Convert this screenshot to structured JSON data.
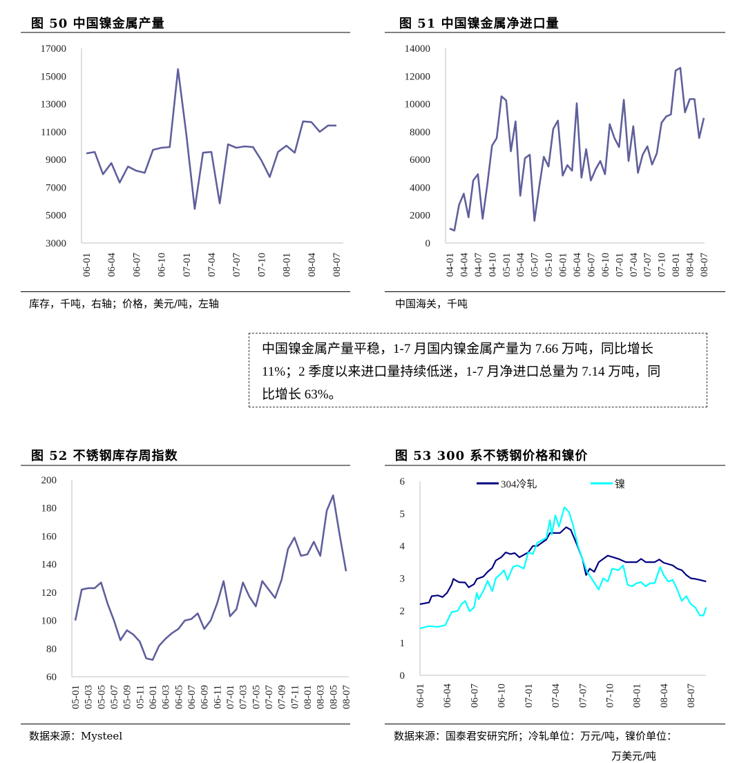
{
  "fig50": {
    "title": "图  50 中国镍金属产量",
    "caption": "库存，千吨，右轴；价格，美元/吨，左轴"
  },
  "fig51": {
    "title": "图  51 中国镍金属净进口量",
    "caption": "中国海关，千吨"
  },
  "fig52": {
    "title": "图  52  不锈钢库存周指数",
    "caption": "数据来源：Mysteel"
  },
  "fig53": {
    "title": "图  53  300 系不锈钢价格和镍价",
    "caption": "数据来源：国泰君安研究所；冷轧单位：万元/吨，镍价单位：",
    "caption_line2": "万美元/吨"
  },
  "note": {
    "lines": [
      "中国镍金属产量平稳，1-7 月国内镍金属产量为 7.66 万吨，同比增长",
      "11%；2 季度以来进口量持续低迷，1-7 月净进口总量为 7.14 万吨，同",
      "比增长 63%。"
    ]
  },
  "chart_data": [
    {
      "type": "line",
      "title": "中国镍金属产量",
      "x_start": "06-01",
      "x_step": "month",
      "tick_every": 3,
      "x_tick_labels": [
        "06-01",
        "06-04",
        "06-07",
        "06-10",
        "07-01",
        "07-04",
        "07-07",
        "07-10",
        "08-01",
        "08-04",
        "08-07"
      ],
      "y_ticks": [
        "3000",
        "5000",
        "7000",
        "9000",
        "11000",
        "13000",
        "15000",
        "17000"
      ],
      "ylim": [
        3000,
        17000
      ],
      "color": "#5f5f9c",
      "values": [
        9450,
        9550,
        7950,
        8750,
        7350,
        8500,
        8200,
        8050,
        9700,
        9850,
        9900,
        15500,
        10800,
        5450,
        9500,
        9550,
        5850,
        10100,
        9850,
        9950,
        9900,
        8950,
        7750,
        9550,
        10000,
        9500,
        11750,
        11700,
        11000,
        11450,
        11450
      ]
    },
    {
      "type": "line",
      "title": "中国镍金属净进口量",
      "x_start": "04-01",
      "x_step": "month",
      "tick_every": 3,
      "x_tick_labels": [
        "04-01",
        "04-04",
        "04-07",
        "04-10",
        "05-01",
        "05-04",
        "05-07",
        "05-10",
        "06-01",
        "06-04",
        "06-07",
        "06-10",
        "07-01",
        "07-04",
        "07-07",
        "07-10",
        "08-01",
        "08-04",
        "08-07"
      ],
      "y_ticks": [
        "0",
        "2000",
        "4000",
        "6000",
        "8000",
        "10000",
        "12000",
        "14000"
      ],
      "ylim": [
        0,
        14000
      ],
      "color": "#5f5f9c",
      "values": [
        1050,
        900,
        2750,
        3550,
        1850,
        4500,
        4950,
        1750,
        4200,
        7000,
        7550,
        10550,
        10250,
        6600,
        8750,
        3400,
        6100,
        6350,
        1600,
        4000,
        6200,
        5500,
        8200,
        8800,
        4850,
        5600,
        5200,
        10050,
        4700,
        6750,
        4500,
        5300,
        5900,
        4950,
        8550,
        7550,
        6900,
        10300,
        5900,
        8400,
        5050,
        6350,
        6950,
        5650,
        6450,
        8650,
        9100,
        9250,
        12400,
        12600,
        9400,
        10350,
        10350,
        7550,
        9000
      ]
    },
    {
      "type": "line",
      "title": "不锈钢库存周指数",
      "x_start": "05-01",
      "x_step": "month",
      "tick_every": 2,
      "x_tick_labels": [
        "05-01",
        "05-03",
        "05-05",
        "05-07",
        "05-09",
        "05-11",
        "06-01",
        "06-03",
        "06-05",
        "06-07",
        "06-09",
        "06-11",
        "07-01",
        "07-03",
        "07-05",
        "07-07",
        "07-09",
        "07-11",
        "08-01",
        "08-03",
        "08-05",
        "08-07"
      ],
      "y_ticks": [
        "60",
        "80",
        "100",
        "120",
        "140",
        "160",
        "180",
        "200"
      ],
      "ylim": [
        60,
        200
      ],
      "color": "#5f5f9c",
      "values": [
        100,
        122,
        123,
        123,
        127,
        112,
        100,
        86,
        93,
        90,
        85,
        73,
        72,
        82,
        87,
        91,
        94,
        100,
        101,
        105,
        94,
        100,
        112,
        128,
        103,
        108,
        127,
        117,
        110,
        128,
        122,
        116,
        129,
        151,
        159,
        146,
        147,
        156,
        146,
        178,
        189,
        161,
        135
      ]
    },
    {
      "type": "line",
      "title": "300 系不锈钢价格和镍价",
      "x_unit": "months since 06-01",
      "tick_every": 3,
      "x_tick_labels": [
        "06-01",
        "06-04",
        "06-07",
        "06-10",
        "07-01",
        "07-04",
        "07-07",
        "07-10",
        "08-01",
        "08-04",
        "08-07"
      ],
      "y_ticks": [
        "0",
        "1",
        "2",
        "3",
        "4",
        "5",
        "6"
      ],
      "ylim": [
        0,
        6
      ],
      "legend": "top",
      "series": [
        {
          "name": "304冷轧",
          "color": "#000080",
          "x": [
            0,
            1,
            1.3,
            2,
            2.5,
            3,
            3.5,
            3.7,
            4,
            4.3,
            5,
            5.4,
            6,
            6.3,
            7,
            7.5,
            8,
            8.4,
            9,
            9.5,
            10,
            10.5,
            11,
            12,
            12.5,
            13,
            13.5,
            14,
            14.4,
            15.5,
            16.2,
            16.7,
            17.3,
            18,
            18.4,
            18.8,
            19.3,
            19.8,
            20.3,
            20.8,
            22,
            22.8,
            24,
            24.5,
            25,
            26,
            26.5,
            27,
            28,
            28.5,
            29,
            29.5,
            30,
            30.5,
            31,
            31.7
          ],
          "values": [
            2.2,
            2.25,
            2.45,
            2.47,
            2.42,
            2.55,
            2.8,
            2.98,
            2.93,
            2.88,
            2.87,
            2.72,
            2.82,
            2.98,
            3.05,
            3.2,
            3.32,
            3.55,
            3.65,
            3.8,
            3.75,
            3.78,
            3.65,
            3.8,
            4.0,
            4.0,
            4.1,
            4.2,
            4.4,
            4.4,
            4.58,
            4.5,
            4.1,
            3.6,
            3.1,
            3.3,
            3.2,
            3.5,
            3.6,
            3.7,
            3.6,
            3.5,
            3.5,
            3.6,
            3.5,
            3.5,
            3.58,
            3.48,
            3.4,
            3.3,
            3.25,
            3.1,
            3.0,
            2.98,
            2.95,
            2.9
          ]
        },
        {
          "name": "镍",
          "color": "#00ffff",
          "x": [
            0,
            1,
            2,
            2.8,
            3.5,
            4.2,
            4.6,
            5,
            5.5,
            6,
            6.3,
            6.5,
            7,
            7.5,
            8,
            8.4,
            9,
            9.3,
            9.7,
            10.3,
            10.8,
            11.5,
            12,
            12.5,
            13,
            14,
            14.4,
            14.6,
            15,
            15.4,
            16,
            16.5,
            17,
            17.5,
            18,
            18.5,
            19,
            19.8,
            20.3,
            20.8,
            21.3,
            22,
            22.5,
            23,
            23.5,
            24,
            24.5,
            25,
            25.5,
            26,
            26.6,
            27,
            27.5,
            28,
            28.5,
            29,
            29.5,
            30,
            30.5,
            31,
            31.4,
            31.7
          ],
          "values": [
            1.45,
            1.52,
            1.5,
            1.55,
            1.95,
            2.0,
            2.2,
            2.3,
            1.98,
            2.1,
            2.55,
            2.35,
            2.6,
            2.92,
            2.6,
            3.0,
            3.15,
            3.25,
            2.95,
            3.35,
            3.4,
            3.3,
            3.8,
            3.75,
            4.1,
            4.25,
            4.8,
            4.35,
            4.95,
            4.6,
            5.2,
            5.05,
            4.6,
            4.0,
            3.6,
            3.2,
            3.0,
            2.65,
            3.0,
            2.9,
            3.3,
            3.25,
            3.4,
            2.8,
            2.75,
            2.85,
            2.88,
            2.75,
            2.85,
            2.85,
            3.35,
            3.1,
            2.9,
            2.95,
            2.65,
            2.3,
            2.45,
            2.2,
            2.1,
            1.85,
            1.85,
            2.1
          ]
        }
      ]
    }
  ]
}
